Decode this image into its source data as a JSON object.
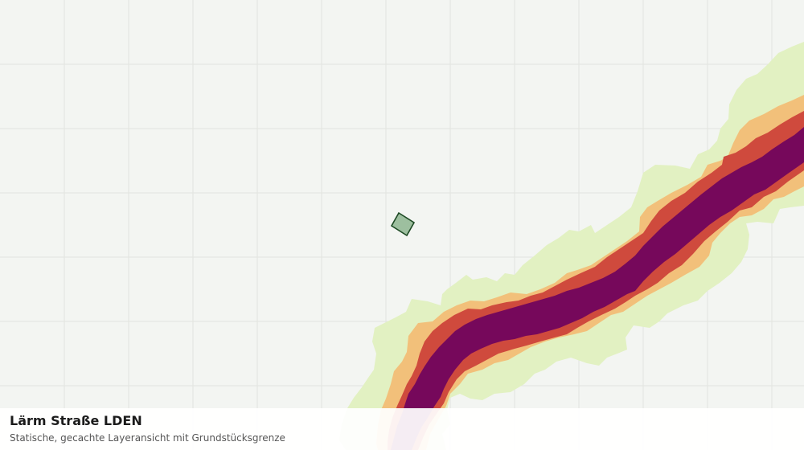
{
  "map": {
    "layer": "noise-contours-road",
    "colors": {
      "background": "#f3f5f2",
      "grid": "#e2e4e0",
      "band_1": "#e2f1c2",
      "band_2": "#f2c07a",
      "band_3": "#cf4a3d",
      "band_4": "#76085b",
      "parcel_fill": "#9dbf9f",
      "parcel_stroke": "#1e4a25"
    }
  },
  "caption": {
    "title": "Lärm Straße LDEN",
    "subtitle": "Statische, gecachte Layeransicht mit Grundstücksgrenze"
  }
}
